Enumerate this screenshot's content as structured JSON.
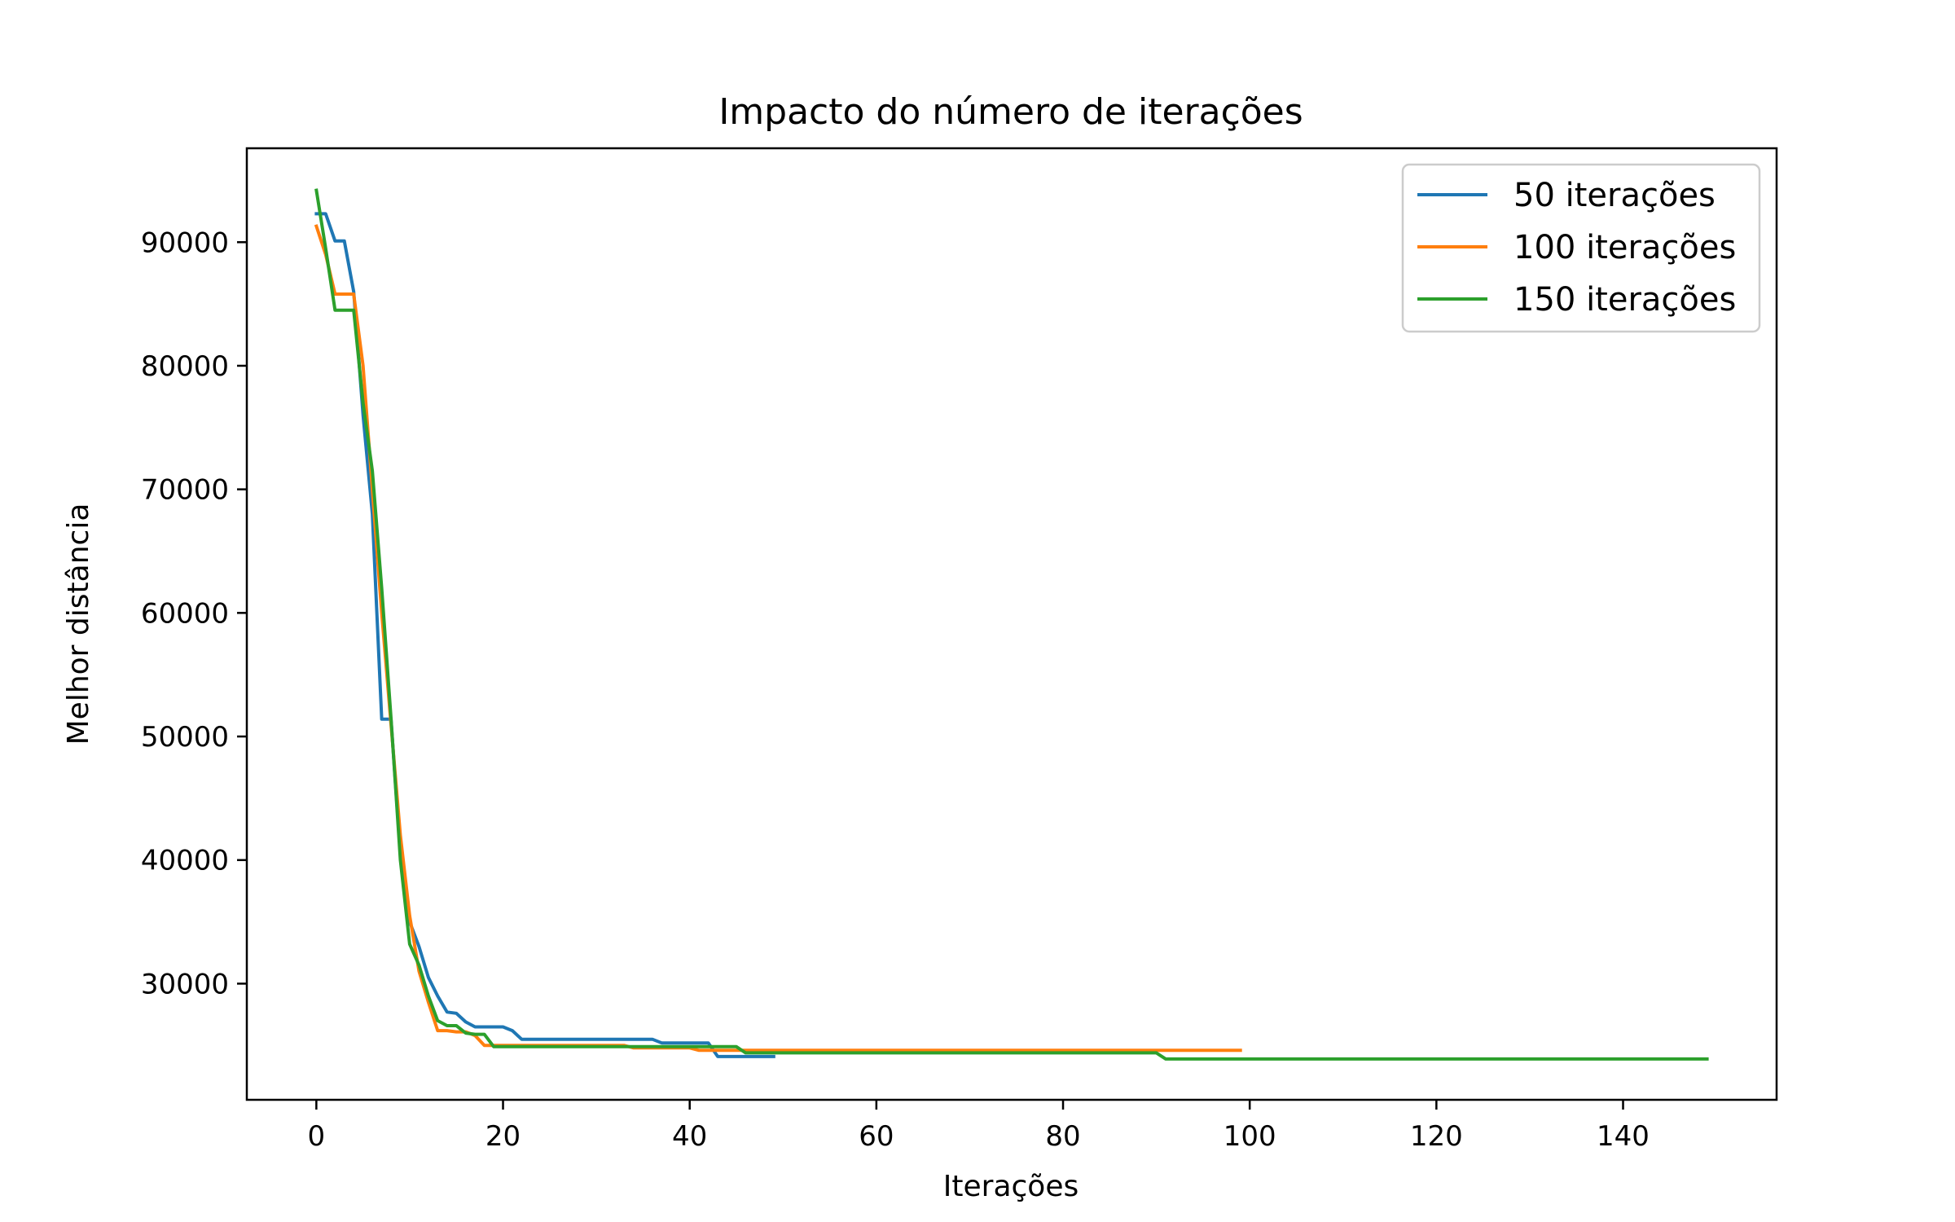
{
  "chart_data": {
    "type": "line",
    "title": "Impacto do número de iterações",
    "xlabel": "Iterações",
    "ylabel": "Melhor distância",
    "xlim": [
      -7.45,
      156.45
    ],
    "ylim": [
      20600,
      97600
    ],
    "xticks": [
      0,
      20,
      40,
      60,
      80,
      100,
      120,
      140
    ],
    "yticks": [
      30000,
      40000,
      50000,
      60000,
      70000,
      80000,
      90000
    ],
    "grid": false,
    "legend_position": "top-right",
    "series": [
      {
        "name": "50 iterações",
        "color": "#1f77b4",
        "points": [
          [
            0,
            92300
          ],
          [
            1,
            92300
          ],
          [
            2,
            90100
          ],
          [
            3,
            90100
          ],
          [
            4,
            86000
          ],
          [
            5,
            76000
          ],
          [
            6,
            68000
          ],
          [
            7,
            51400
          ],
          [
            8,
            51400
          ],
          [
            9,
            40500
          ],
          [
            10,
            35000
          ],
          [
            11,
            33000
          ],
          [
            12,
            30500
          ],
          [
            13,
            29000
          ],
          [
            14,
            27700
          ],
          [
            15,
            27600
          ],
          [
            16,
            26900
          ],
          [
            17,
            26500
          ],
          [
            18,
            26500
          ],
          [
            19,
            26500
          ],
          [
            20,
            26500
          ],
          [
            21,
            26200
          ],
          [
            22,
            25500
          ],
          [
            23,
            25500
          ],
          [
            24,
            25500
          ],
          [
            25,
            25500
          ],
          [
            26,
            25500
          ],
          [
            27,
            25500
          ],
          [
            28,
            25500
          ],
          [
            29,
            25500
          ],
          [
            30,
            25500
          ],
          [
            31,
            25500
          ],
          [
            32,
            25500
          ],
          [
            33,
            25500
          ],
          [
            34,
            25500
          ],
          [
            35,
            25500
          ],
          [
            36,
            25500
          ],
          [
            37,
            25200
          ],
          [
            38,
            25200
          ],
          [
            39,
            25200
          ],
          [
            40,
            25200
          ],
          [
            41,
            25200
          ],
          [
            42,
            25200
          ],
          [
            43,
            24100
          ],
          [
            44,
            24100
          ],
          [
            45,
            24100
          ],
          [
            46,
            24100
          ],
          [
            47,
            24100
          ],
          [
            48,
            24100
          ],
          [
            49,
            24100
          ]
        ]
      },
      {
        "name": "100 iterações",
        "color": "#ff7f0e",
        "points": [
          [
            0,
            91300
          ],
          [
            1,
            89000
          ],
          [
            2,
            85800
          ],
          [
            3,
            85800
          ],
          [
            4,
            85800
          ],
          [
            5,
            80000
          ],
          [
            6,
            70000
          ],
          [
            7,
            60000
          ],
          [
            8,
            51000
          ],
          [
            9,
            42000
          ],
          [
            10,
            35500
          ],
          [
            11,
            31000
          ],
          [
            12,
            28500
          ],
          [
            13,
            26200
          ],
          [
            14,
            26200
          ],
          [
            15,
            26100
          ],
          [
            16,
            26100
          ],
          [
            17,
            25800
          ],
          [
            18,
            25000
          ],
          [
            19,
            25000
          ],
          [
            20,
            25000
          ],
          [
            30,
            25000
          ],
          [
            33,
            25000
          ],
          [
            34,
            24800
          ],
          [
            40,
            24800
          ],
          [
            41,
            24600
          ],
          [
            99,
            24600
          ]
        ]
      },
      {
        "name": "150 iterações",
        "color": "#2ca02c",
        "points": [
          [
            0,
            94200
          ],
          [
            1,
            89500
          ],
          [
            2,
            84500
          ],
          [
            3,
            84500
          ],
          [
            4,
            84500
          ],
          [
            5,
            77000
          ],
          [
            6,
            71500
          ],
          [
            7,
            62000
          ],
          [
            8,
            51500
          ],
          [
            9,
            40000
          ],
          [
            10,
            33200
          ],
          [
            11,
            31500
          ],
          [
            12,
            29000
          ],
          [
            13,
            27000
          ],
          [
            14,
            26600
          ],
          [
            15,
            26600
          ],
          [
            16,
            26000
          ],
          [
            17,
            25900
          ],
          [
            18,
            25900
          ],
          [
            19,
            24900
          ],
          [
            20,
            24900
          ],
          [
            40,
            24900
          ],
          [
            45,
            24900
          ],
          [
            46,
            24400
          ],
          [
            90,
            24400
          ],
          [
            91,
            23900
          ],
          [
            149,
            23900
          ]
        ]
      }
    ]
  }
}
